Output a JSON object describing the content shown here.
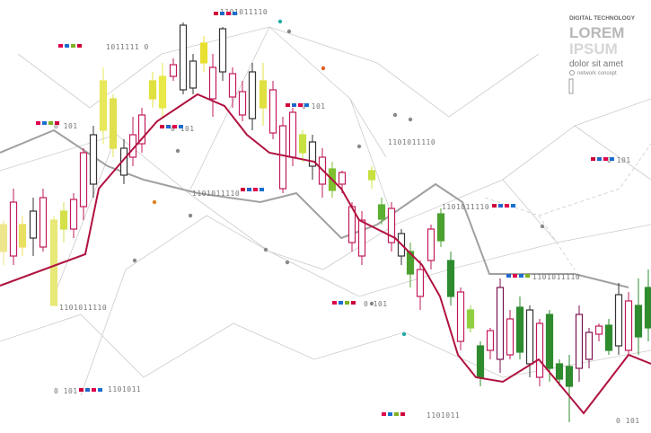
{
  "header": {
    "category": "DIGITAL TECHNOLOGY",
    "title_line1": "LOREM",
    "title_line2": "IPSUM",
    "subtitle": "dolor sit amet",
    "caption": "network concept"
  },
  "binary_labels": [
    "1101011110",
    "1011111 0",
    "0 101",
    "0 101",
    "0 101",
    "1101011110",
    "1101011110",
    "1101011110",
    "0 101",
    "1101011110",
    "0 101",
    "1101011110",
    "0 101",
    "1101011",
    "1101011",
    "0 101"
  ]
}
